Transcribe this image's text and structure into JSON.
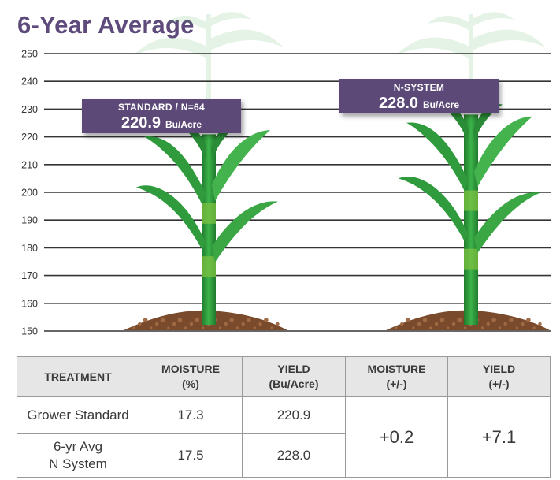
{
  "page_title": "6-Year Average",
  "colors": {
    "title": "#5e4b7c",
    "callout": "#5b4a78",
    "stalk": "#2e9a3a",
    "leaf": "#3aa644",
    "soil": "#7a4a2c",
    "gridline": "#333333",
    "table_header": "#e6e6e6"
  },
  "icons": [
    "corn-plant-icon",
    "soil-mound-icon"
  ],
  "chart_data": {
    "type": "bar",
    "title": "6-Year Average",
    "categories": [
      "STANDARD / N=64",
      "N-SYSTEM"
    ],
    "values": [
      220.9,
      228.0
    ],
    "unit": "Bu/Acre",
    "ylim": [
      150,
      250
    ],
    "yticks": [
      250,
      240,
      230,
      220,
      210,
      200,
      190,
      180,
      170,
      160,
      150
    ],
    "grid": true,
    "series": [
      {
        "values": [
          220.9,
          228.0
        ]
      }
    ],
    "callouts": [
      {
        "caption": "STANDARD / N=64",
        "value": "220.9",
        "unit": "Bu/Acre"
      },
      {
        "caption": "N-SYSTEM",
        "value": "228.0",
        "unit": "Bu/Acre"
      }
    ]
  },
  "table": {
    "headers": [
      [
        "TREATMENT"
      ],
      [
        "MOISTURE",
        "(%)"
      ],
      [
        "YIELD",
        "(Bu/Acre)"
      ],
      [
        "MOISTURE",
        "(+/-)"
      ],
      [
        "YIELD",
        "(+/-)"
      ]
    ],
    "rows": [
      {
        "treatment": [
          "Grower Standard"
        ],
        "moisture": "17.3",
        "yield": "220.9"
      },
      {
        "treatment": [
          "6-yr Avg",
          "N System"
        ],
        "moisture": "17.5",
        "yield": "228.0"
      }
    ],
    "moisture_diff": "+0.2",
    "yield_diff": "+7.1"
  }
}
